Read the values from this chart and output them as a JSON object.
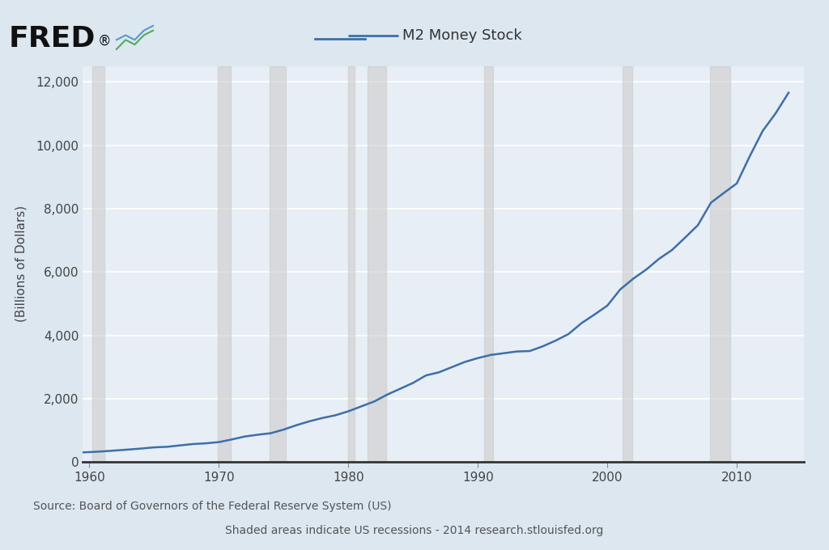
{
  "title": "M2 Money Stock",
  "ylabel": "(Billions of Dollars)",
  "line_color": "#3d6fa8",
  "line_width": 1.8,
  "background_color": "#dce7f0",
  "plot_bg_color": "#e8eef5",
  "grid_color": "#ffffff",
  "recession_color": "#cccccc",
  "recession_alpha": 0.6,
  "ylim": [
    0,
    12500
  ],
  "yticks": [
    0,
    2000,
    4000,
    6000,
    8000,
    10000,
    12000
  ],
  "xlim_start": 1959.5,
  "xlim_end": 2015.2,
  "xticks": [
    1960,
    1970,
    1980,
    1990,
    2000,
    2010
  ],
  "source_text": "Source: Board of Governors of the Federal Reserve System (US)",
  "note_text": "Shaded areas indicate US recessions - 2014 research.stlouisfed.org",
  "recessions": [
    [
      1960.25,
      1961.17
    ],
    [
      1969.92,
      1970.92
    ],
    [
      1973.92,
      1975.17
    ],
    [
      1980.0,
      1980.5
    ],
    [
      1981.5,
      1982.92
    ],
    [
      1990.5,
      1991.17
    ],
    [
      2001.17,
      2001.92
    ],
    [
      2007.92,
      2009.5
    ]
  ],
  "years": [
    1959,
    1960,
    1961,
    1962,
    1963,
    1964,
    1965,
    1966,
    1967,
    1968,
    1969,
    1970,
    1971,
    1972,
    1973,
    1974,
    1975,
    1976,
    1977,
    1978,
    1979,
    1980,
    1981,
    1982,
    1983,
    1984,
    1985,
    1986,
    1987,
    1988,
    1989,
    1990,
    1991,
    1992,
    1993,
    1994,
    1995,
    1996,
    1997,
    1998,
    1999,
    2000,
    2001,
    2002,
    2003,
    2004,
    2005,
    2006,
    2007,
    2008,
    2009,
    2010,
    2011,
    2012,
    2013,
    2014
  ],
  "values": [
    298,
    312,
    335,
    363,
    393,
    425,
    462,
    480,
    524,
    567,
    590,
    628,
    712,
    805,
    861,
    908,
    1023,
    1163,
    1286,
    1389,
    1475,
    1600,
    1756,
    1911,
    2127,
    2312,
    2497,
    2734,
    2832,
    2995,
    3159,
    3280,
    3380,
    3434,
    3488,
    3502,
    3649,
    3830,
    4038,
    4381,
    4652,
    4936,
    5448,
    5786,
    6073,
    6415,
    6693,
    7080,
    7478,
    8184,
    8494,
    8794,
    9651,
    10451,
    11007,
    11657
  ]
}
